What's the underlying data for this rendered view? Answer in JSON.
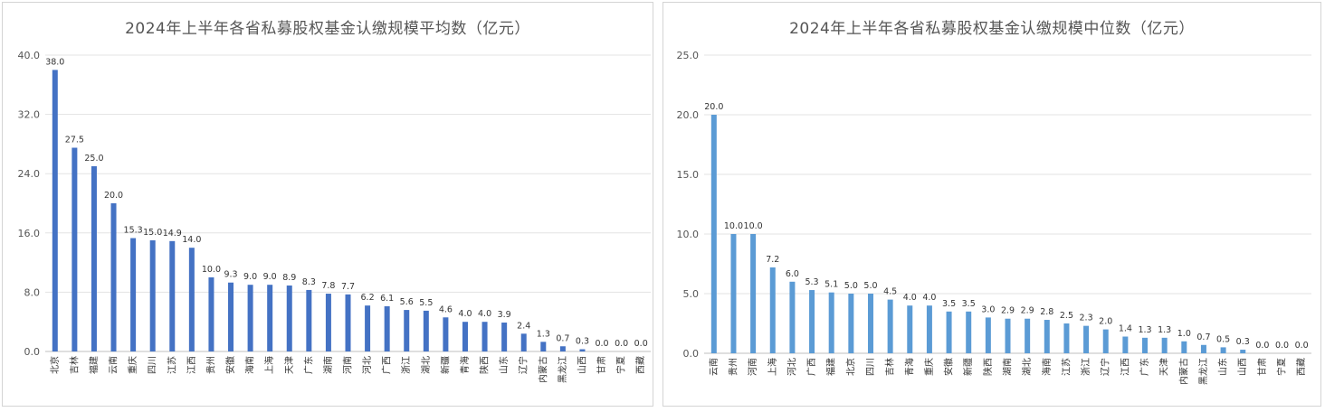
{
  "chart_data": [
    {
      "type": "bar",
      "title": "2024年上半年各省私募股权基金认缴规模平均数（亿元）",
      "categories": [
        "北京",
        "吉林",
        "福建",
        "云南",
        "重庆",
        "四川",
        "江苏",
        "江西",
        "贵州",
        "安徽",
        "海南",
        "上海",
        "天津",
        "广东",
        "湖南",
        "河南",
        "河北",
        "广西",
        "浙江",
        "湖北",
        "新疆",
        "青海",
        "陕西",
        "山东",
        "辽宁",
        "内蒙古",
        "黑龙江",
        "山西",
        "甘肃",
        "宁夏",
        "西藏"
      ],
      "values": [
        38.0,
        27.5,
        25.0,
        20.0,
        15.3,
        15.0,
        14.9,
        14.0,
        10.0,
        9.3,
        9.0,
        9.0,
        8.9,
        8.3,
        7.8,
        7.7,
        6.2,
        6.1,
        5.6,
        5.5,
        4.6,
        4.0,
        4.0,
        3.9,
        2.4,
        1.3,
        0.7,
        0.3,
        0.0,
        0.0,
        0.0
      ],
      "y_ticks": [
        "0.0",
        "8.0",
        "16.0",
        "24.0",
        "32.0",
        "40.0"
      ],
      "ylim": [
        0,
        40
      ],
      "grid": true,
      "color": "#4472c4"
    },
    {
      "type": "bar",
      "title": "2024年上半年各省私募股权基金认缴规模中位数（亿元）",
      "categories": [
        "云南",
        "贵州",
        "河南",
        "上海",
        "河北",
        "广西",
        "福建",
        "北京",
        "四川",
        "吉林",
        "青海",
        "重庆",
        "安徽",
        "新疆",
        "陕西",
        "湖南",
        "湖北",
        "海南",
        "江苏",
        "浙江",
        "辽宁",
        "江西",
        "广东",
        "天津",
        "内蒙古",
        "黑龙江",
        "山东",
        "山西",
        "甘肃",
        "宁夏",
        "西藏"
      ],
      "values": [
        20.0,
        10.0,
        10.0,
        7.2,
        6.0,
        5.3,
        5.1,
        5.0,
        5.0,
        4.5,
        4.0,
        4.0,
        3.5,
        3.5,
        3.0,
        2.9,
        2.9,
        2.8,
        2.5,
        2.3,
        2.0,
        1.4,
        1.3,
        1.3,
        1.0,
        0.7,
        0.5,
        0.3,
        0.0,
        0.0,
        0.0
      ],
      "y_ticks": [
        "0.0",
        "5.0",
        "10.0",
        "15.0",
        "20.0",
        "25.0"
      ],
      "ylim": [
        0,
        25
      ],
      "grid": true,
      "color": "#5b9bd5"
    }
  ]
}
